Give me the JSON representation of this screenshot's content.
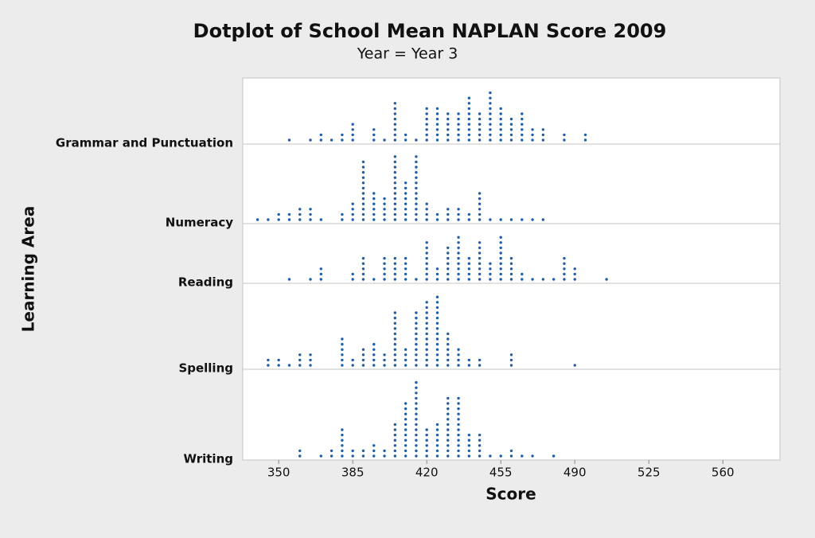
{
  "chart_data": {
    "type": "dotplot",
    "title": "Dotplot of School Mean NAPLAN Score 2009",
    "subtitle": "Year = Year 3",
    "xlabel": "Score",
    "ylabel": "Learning Area",
    "xlim": [
      333,
      587
    ],
    "xticks": [
      350,
      385,
      420,
      455,
      490,
      525,
      560
    ],
    "color": "#1f5ea8",
    "series": [
      {
        "name": "Grammar and Punctuation",
        "x": [
          355,
          365,
          370,
          375,
          380,
          385,
          395,
          400,
          405,
          410,
          415,
          420,
          425,
          430,
          435,
          440,
          445,
          450,
          455,
          460,
          465,
          470,
          475,
          485,
          495
        ],
        "counts": [
          1,
          1,
          2,
          1,
          2,
          4,
          3,
          1,
          8,
          2,
          1,
          7,
          7,
          6,
          6,
          9,
          6,
          10,
          7,
          5,
          6,
          3,
          3,
          2,
          2
        ]
      },
      {
        "name": "Numeracy",
        "x": [
          340,
          345,
          350,
          355,
          360,
          365,
          370,
          380,
          385,
          390,
          395,
          400,
          405,
          410,
          415,
          420,
          425,
          430,
          435,
          440,
          445,
          450,
          455,
          460,
          465,
          470,
          475
        ],
        "counts": [
          1,
          1,
          2,
          2,
          3,
          3,
          1,
          2,
          4,
          12,
          6,
          5,
          13,
          8,
          13,
          4,
          2,
          3,
          3,
          2,
          6,
          1,
          1,
          1,
          1,
          1,
          1
        ]
      },
      {
        "name": "Reading",
        "x": [
          355,
          365,
          370,
          385,
          390,
          395,
          400,
          405,
          410,
          415,
          420,
          425,
          430,
          435,
          440,
          445,
          450,
          455,
          460,
          465,
          470,
          475,
          480,
          485,
          490,
          505
        ],
        "counts": [
          1,
          1,
          3,
          2,
          5,
          1,
          5,
          5,
          5,
          1,
          8,
          3,
          7,
          9,
          5,
          8,
          4,
          9,
          5,
          2,
          1,
          1,
          1,
          5,
          3,
          1
        ]
      },
      {
        "name": "Spelling",
        "x": [
          345,
          350,
          355,
          360,
          365,
          380,
          385,
          390,
          395,
          400,
          405,
          410,
          415,
          420,
          425,
          430,
          435,
          440,
          445,
          460,
          490
        ],
        "counts": [
          2,
          2,
          1,
          3,
          3,
          6,
          2,
          4,
          5,
          3,
          11,
          4,
          11,
          13,
          14,
          7,
          4,
          2,
          2,
          3,
          1
        ]
      },
      {
        "name": "Writing",
        "x": [
          360,
          370,
          375,
          380,
          385,
          390,
          395,
          400,
          405,
          410,
          415,
          420,
          425,
          430,
          435,
          440,
          445,
          450,
          455,
          460,
          465,
          470,
          480
        ],
        "counts": [
          2,
          1,
          2,
          6,
          2,
          2,
          3,
          2,
          7,
          11,
          15,
          6,
          7,
          12,
          12,
          5,
          5,
          1,
          1,
          2,
          1,
          1,
          1
        ]
      }
    ]
  }
}
